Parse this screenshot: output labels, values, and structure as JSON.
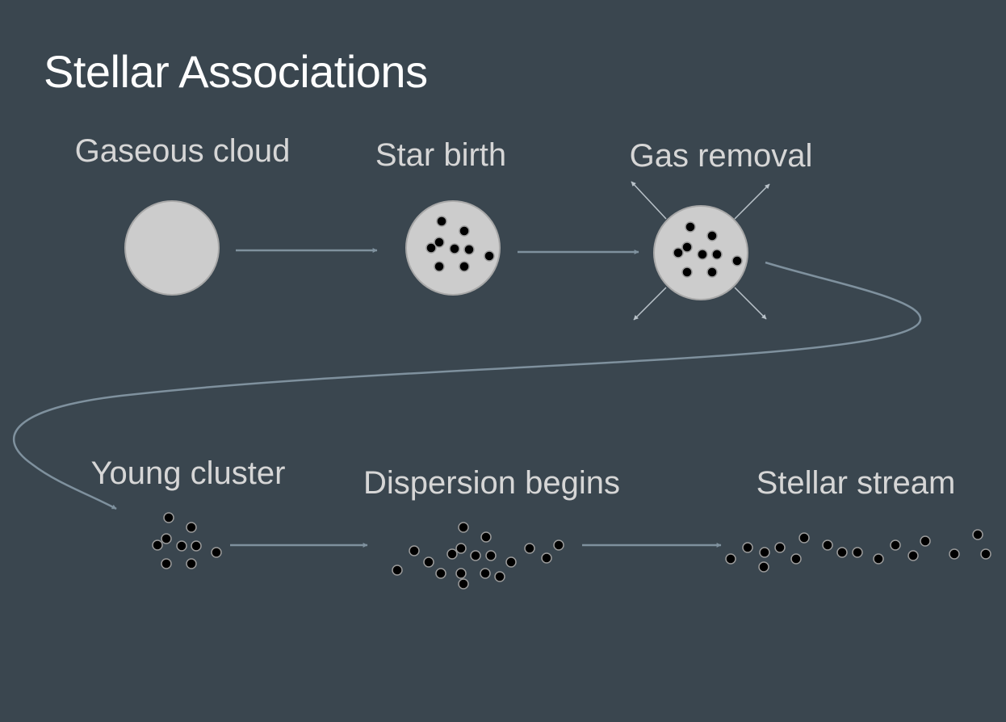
{
  "title": "Stellar Associations",
  "colors": {
    "background": "#3a464f",
    "cloud_fill": "#cccccc",
    "cloud_stroke": "#a8a8a8",
    "arrow": "#7f919e",
    "star_fill": "#000000",
    "star_stroke": "#9a9a9a",
    "title_text": "#ffffff",
    "label_text": "#d6d6d6"
  },
  "stages": [
    {
      "id": "gaseous-cloud",
      "label": "Gaseous cloud"
    },
    {
      "id": "star-birth",
      "label": "Star birth"
    },
    {
      "id": "gas-removal",
      "label": "Gas removal"
    },
    {
      "id": "young-cluster",
      "label": "Young cluster"
    },
    {
      "id": "dispersion-begins",
      "label": "Dispersion begins"
    },
    {
      "id": "stellar-stream",
      "label": "Stellar stream"
    }
  ]
}
